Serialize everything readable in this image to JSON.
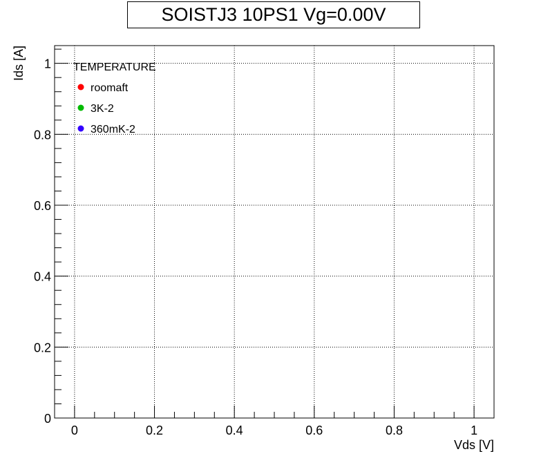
{
  "chart_data": {
    "type": "scatter",
    "title": "SOISTJ3 10PS1 Vg=0.00V",
    "xlabel": "Vds [V]",
    "ylabel": "Ids [A]",
    "xlim": [
      -0.05,
      1.05
    ],
    "ylim": [
      0,
      1.05
    ],
    "x_ticks": [
      0,
      0.2,
      0.4,
      0.6,
      0.8,
      1
    ],
    "x_tick_labels": [
      "0",
      "0.2",
      "0.4",
      "0.6",
      "0.8",
      "1"
    ],
    "y_ticks": [
      0,
      0.2,
      0.4,
      0.6,
      0.8,
      1
    ],
    "y_tick_labels": [
      "0",
      "0.2",
      "0.4",
      "0.6",
      "0.8",
      "1"
    ],
    "grid": true,
    "legend": {
      "title": "TEMPERATURE",
      "placement": "top-left",
      "entries": [
        {
          "label": "roomaft",
          "color": "#ff0000"
        },
        {
          "label": "3K-2",
          "color": "#00bb00"
        },
        {
          "label": "360mK-2",
          "color": "#3300ff"
        }
      ]
    },
    "series": [
      {
        "name": "roomaft",
        "color": "#ff0000",
        "x": [],
        "y": []
      },
      {
        "name": "3K-2",
        "color": "#00bb00",
        "x": [],
        "y": []
      },
      {
        "name": "360mK-2",
        "color": "#3300ff",
        "x": [],
        "y": []
      }
    ]
  }
}
